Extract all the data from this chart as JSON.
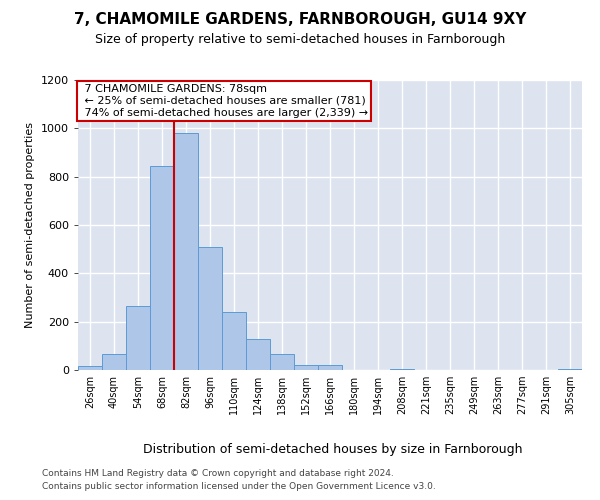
{
  "title_line1": "7, CHAMOMILE GARDENS, FARNBOROUGH, GU14 9XY",
  "title_line2": "Size of property relative to semi-detached houses in Farnborough",
  "xlabel": "Distribution of semi-detached houses by size in Farnborough",
  "ylabel": "Number of semi-detached properties",
  "footnote1": "Contains HM Land Registry data © Crown copyright and database right 2024.",
  "footnote2": "Contains public sector information licensed under the Open Government Licence v3.0.",
  "bin_labels": [
    "26sqm",
    "40sqm",
    "54sqm",
    "68sqm",
    "82sqm",
    "96sqm",
    "110sqm",
    "124sqm",
    "138sqm",
    "152sqm",
    "166sqm",
    "180sqm",
    "194sqm",
    "208sqm",
    "221sqm",
    "235sqm",
    "249sqm",
    "263sqm",
    "277sqm",
    "291sqm",
    "305sqm"
  ],
  "bar_values": [
    15,
    65,
    265,
    845,
    980,
    510,
    240,
    130,
    65,
    20,
    20,
    0,
    0,
    5,
    0,
    0,
    0,
    0,
    0,
    0,
    5
  ],
  "bar_color": "#aec6e8",
  "bar_edge_color": "#5b9bd5",
  "background_color": "#dde4f0",
  "grid_color": "#ffffff",
  "property_label": "7 CHAMOMILE GARDENS: 78sqm",
  "pct_smaller": 25,
  "pct_smaller_count": 781,
  "pct_larger": 74,
  "pct_larger_count": 2339,
  "red_line_color": "#cc0000",
  "annotation_box_edge": "#cc0000",
  "ylim": [
    0,
    1200
  ],
  "yticks": [
    0,
    200,
    400,
    600,
    800,
    1000,
    1200
  ],
  "title1_fontsize": 11,
  "title2_fontsize": 9,
  "ylabel_fontsize": 8,
  "xlabel_fontsize": 9,
  "tick_fontsize": 8,
  "xtick_fontsize": 7,
  "annot_fontsize": 8,
  "footnote_fontsize": 6.5
}
